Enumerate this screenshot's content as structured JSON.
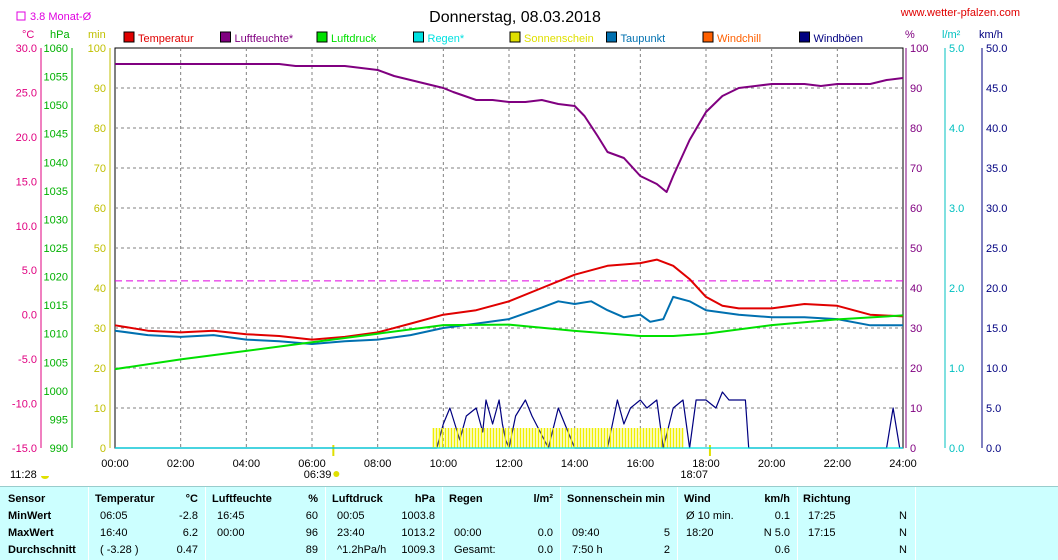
{
  "title": "Donnerstag, 08.03.2018",
  "watermark": "www.wetter-pfalzen.com",
  "monthly_avg_label": "3.8 Monat-Ø",
  "unit_labels": {
    "temp": "°C",
    "pressure": "hPa",
    "sun": "min",
    "humidity": "%",
    "rain": "l/m²",
    "wind": "km/h"
  },
  "legend": [
    {
      "label": "Temperatur",
      "color": "#e00000"
    },
    {
      "label": "Luftfeuchte*",
      "color": "#800080"
    },
    {
      "label": "Luftdruck",
      "color": "#00e000"
    },
    {
      "label": "Regen*",
      "color": "#00e0e0"
    },
    {
      "label": "Sonnenschein",
      "color": "#e0e000"
    },
    {
      "label": "Taupunkt",
      "color": "#0070b0"
    },
    {
      "label": "Windchill",
      "color": "#ff6000"
    },
    {
      "label": "Windböen",
      "color": "#000080"
    }
  ],
  "chart_data": {
    "type": "line",
    "title": "Donnerstag, 08.03.2018",
    "x_ticks": [
      "00:00",
      "02:00",
      "04:00",
      "06:00",
      "08:00",
      "10:00",
      "12:00",
      "14:00",
      "16:00",
      "18:00",
      "20:00",
      "22:00",
      "24:00"
    ],
    "x_range_hours": [
      0,
      24
    ],
    "axes": {
      "temp": {
        "range": [
          -15,
          30
        ],
        "ticks": [
          "30.0",
          "25.0",
          "20.0",
          "15.0",
          "10.0",
          "5.0",
          "0.0",
          "-5.0",
          "-10.0",
          "-15.0"
        ],
        "color": "#e00080"
      },
      "pressure": {
        "range": [
          990,
          1060
        ],
        "ticks": [
          "1060",
          "1055",
          "1050",
          "1045",
          "1040",
          "1035",
          "1030",
          "1025",
          "1020",
          "1015",
          "1010",
          "1005",
          "1000",
          "995",
          "990"
        ],
        "color": "#00b000"
      },
      "sun_minutes": {
        "range": [
          0,
          100
        ],
        "ticks": [
          "100",
          "90",
          "80",
          "70",
          "60",
          "50",
          "40",
          "30",
          "20",
          "10",
          "0"
        ],
        "color": "#c0c000"
      },
      "humidity": {
        "range": [
          0,
          100
        ],
        "ticks": [
          "100",
          "90",
          "80",
          "70",
          "60",
          "50",
          "40",
          "30",
          "20",
          "10",
          "0"
        ],
        "color": "#800080"
      },
      "rain": {
        "range": [
          0,
          5
        ],
        "ticks": [
          "5.0",
          "4.0",
          "3.0",
          "2.0",
          "1.0",
          "0.0"
        ],
        "color": "#00c0c0"
      },
      "wind": {
        "range": [
          0,
          50
        ],
        "ticks": [
          "50.0",
          "45.0",
          "40.0",
          "35.0",
          "30.0",
          "25.0",
          "20.0",
          "15.0",
          "10.0",
          "5.0",
          "0.0"
        ],
        "color": "#000080"
      }
    },
    "monthly_avg_temp": 3.8,
    "sun_events": {
      "sunrise": "06:39",
      "sunset": "18:07",
      "sunrise_hour": 6.65,
      "sunset_hour": 18.12
    },
    "moon_events": {
      "moonrise": "11:28"
    },
    "series": [
      {
        "name": "Luftfeuchte*",
        "axis": "humidity",
        "color": "#800080",
        "x": [
          0,
          1,
          2,
          3,
          4,
          5,
          5.5,
          6,
          7,
          7.5,
          8,
          8.5,
          9,
          9.5,
          10,
          10.3,
          11,
          11.5,
          12,
          12.5,
          13,
          13.5,
          14,
          14.3,
          14.7,
          15,
          15.5,
          16,
          16.5,
          16.8,
          17,
          17.5,
          18,
          18.5,
          19,
          19.5,
          20,
          21,
          21.5,
          22,
          23,
          23.5,
          24
        ],
        "y": [
          96,
          96,
          96,
          96,
          96,
          96,
          95.5,
          95.5,
          95.5,
          95,
          94.5,
          93,
          92,
          91,
          90,
          89,
          87,
          87,
          86.5,
          86.5,
          87,
          86,
          85.5,
          83,
          78,
          74,
          72.5,
          68,
          66,
          64,
          68,
          77,
          84,
          88,
          90,
          90.5,
          91,
          91,
          90.5,
          91,
          91,
          92,
          92.5
        ]
      },
      {
        "name": "Temperatur",
        "axis": "temp",
        "color": "#e00000",
        "x": [
          0,
          1,
          2,
          3,
          4,
          5,
          6,
          7,
          8,
          9,
          10,
          11,
          12,
          13,
          14,
          15,
          16,
          16.5,
          17,
          17.5,
          18,
          18.5,
          19,
          20,
          21,
          22,
          23,
          24
        ],
        "y": [
          -1.2,
          -1.8,
          -2.0,
          -1.8,
          -2.2,
          -2.4,
          -2.8,
          -2.5,
          -2.0,
          -1.0,
          0.0,
          0.5,
          1.5,
          3.0,
          4.5,
          5.5,
          5.8,
          6.2,
          5.5,
          4.0,
          2.0,
          1.0,
          0.7,
          0.7,
          1.2,
          1.0,
          0.0,
          -0.2
        ]
      },
      {
        "name": "Taupunkt",
        "axis": "temp",
        "color": "#0070b0",
        "x": [
          0,
          1,
          2,
          3,
          4,
          5,
          6,
          7,
          8,
          9,
          10,
          11,
          12,
          13,
          13.5,
          14,
          14.5,
          15,
          15.5,
          16,
          16.3,
          16.7,
          17,
          17.5,
          18,
          19,
          20,
          21,
          22,
          23,
          24
        ],
        "y": [
          -1.8,
          -2.3,
          -2.5,
          -2.3,
          -2.8,
          -3.0,
          -3.3,
          -3.0,
          -2.8,
          -2.3,
          -1.5,
          -1.0,
          -0.5,
          0.8,
          1.5,
          1.2,
          1.5,
          0.5,
          -0.3,
          0.0,
          -0.8,
          -0.5,
          2.0,
          1.5,
          0.5,
          0.0,
          -0.3,
          -0.3,
          -0.5,
          -1.2,
          -1.2
        ]
      },
      {
        "name": "Luftdruck",
        "axis": "pressure",
        "color": "#00e000",
        "x": [
          0,
          2,
          4,
          6,
          8,
          10,
          12,
          14,
          16,
          17,
          18,
          20,
          22,
          24
        ],
        "y": [
          1003.8,
          1005.5,
          1007,
          1008.5,
          1010,
          1011.5,
          1011.6,
          1010.5,
          1009.6,
          1009.6,
          1010,
          1011.5,
          1012.5,
          1013.2
        ]
      },
      {
        "name": "Windböen",
        "axis": "wind",
        "color": "#000080",
        "x": [
          0,
          9.8,
          10,
          10.2,
          10.5,
          10.7,
          11,
          11.2,
          11.3,
          11.5,
          11.7,
          11.8,
          11.9,
          12,
          12.2,
          12.5,
          12.7,
          13.2,
          13.5,
          13.7,
          14,
          15,
          15.3,
          15.5,
          15.7,
          16,
          16.2,
          16.5,
          16.7,
          17,
          17.3,
          17.5,
          17.7,
          18,
          18.3,
          18.5,
          18.7,
          19,
          19.2,
          19.3,
          23.5,
          23.7,
          23.9,
          24
        ],
        "y": [
          0,
          0,
          3,
          5,
          1,
          4,
          5,
          2,
          6,
          3,
          6,
          3,
          1,
          0,
          4,
          6,
          4,
          0,
          5,
          3,
          0,
          0,
          6,
          3,
          5,
          6,
          5,
          6,
          0,
          5,
          6,
          0,
          6,
          6,
          5,
          7,
          6,
          6,
          6,
          0,
          0,
          5,
          0,
          0
        ]
      },
      {
        "name": "Sonnenschein",
        "axis": "sun_minutes",
        "color": "#f0f000",
        "x": [
          9.7,
          17.3
        ],
        "y": [
          5,
          5
        ]
      },
      {
        "name": "Regen*",
        "axis": "rain",
        "color": "#00e0e0",
        "x": [
          0,
          24
        ],
        "y": [
          0,
          0
        ]
      }
    ]
  },
  "table": {
    "headers": {
      "sensor": "Sensor",
      "temp": "Temperatur",
      "temp_unit": "°C",
      "hum": "Luftfeuchte",
      "hum_unit": "%",
      "press": "Luftdruck",
      "press_unit": "hPa",
      "rain": "Regen",
      "rain_unit": "l/m²",
      "sun": "Sonnenschein min",
      "wind": "Wind",
      "wind_unit": "km/h",
      "dir": "Richtung"
    },
    "rows": [
      {
        "label": "MinWert",
        "temp_time": "06:05",
        "temp_val": "-2.8",
        "hum_time": "16:45",
        "hum_val": "60",
        "press_time": "00:05",
        "press_val": "1003.8",
        "rain_time": "",
        "rain_val": "",
        "sun_time": "",
        "sun_val": "",
        "wind_time": "Ø 10 min.",
        "wind_val": "0.1",
        "dir_time": "17:25",
        "dir_val": "N"
      },
      {
        "label": "MaxWert",
        "temp_time": "16:40",
        "temp_val": "6.2",
        "hum_time": "00:00",
        "hum_val": "96",
        "press_time": "23:40",
        "press_val": "1013.2",
        "rain_time": "00:00",
        "rain_val": "0.0",
        "sun_time": "09:40",
        "sun_val": "5",
        "wind_time": "18:20",
        "wind_val": "N 5.0",
        "dir_time": "17:15",
        "dir_val": "N"
      },
      {
        "label": "Durchschnitt",
        "temp_time": "( -3.28 )",
        "temp_val": "0.47",
        "hum_time": "",
        "hum_val": "89",
        "press_time": "^1.2hPa/h",
        "press_val": "1009.3",
        "rain_time": "Gesamt:",
        "rain_val": "0.0",
        "sun_time": "7:50 h",
        "sun_val": "2",
        "wind_time": "",
        "wind_val": "0.6",
        "dir_time": "",
        "dir_val": "N"
      }
    ]
  }
}
